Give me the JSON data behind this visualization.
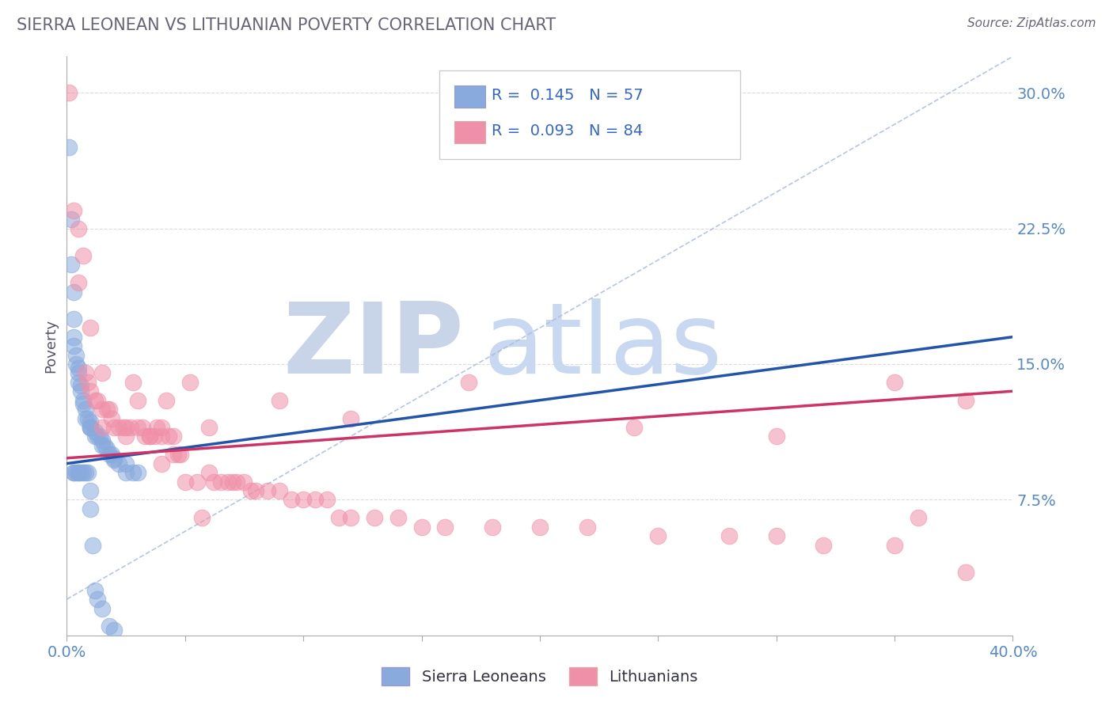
{
  "title": "SIERRA LEONEAN VS LITHUANIAN POVERTY CORRELATION CHART",
  "source_text": "Source: ZipAtlas.com",
  "ylabel": "Poverty",
  "xlim": [
    0.0,
    0.4
  ],
  "ylim": [
    0.0,
    0.32
  ],
  "yticks": [
    0.075,
    0.15,
    0.225,
    0.3
  ],
  "ytick_labels": [
    "7.5%",
    "15.0%",
    "22.5%",
    "30.0%"
  ],
  "background_color": "#ffffff",
  "grid_color": "#cccccc",
  "blue_color": "#88aadd",
  "pink_color": "#f090a8",
  "blue_line_color": "#2255aa",
  "pink_line_color": "#cc3366",
  "diag_line_color": "#aabbdd",
  "watermark_zip": "ZIP",
  "watermark_atlas": "atlas",
  "watermark_color_zip": "#c8d4e8",
  "watermark_color_atlas": "#c8d8f0",
  "legend_R1": "0.145",
  "legend_N1": "57",
  "legend_R2": "0.093",
  "legend_N2": "84",
  "legend_text_color": "#3366cc",
  "title_color": "#666677",
  "axis_tick_color": "#5588cc",
  "source_color": "#666677",
  "blue_line_start_y": 0.095,
  "blue_line_end_y": 0.165,
  "pink_line_start_y": 0.098,
  "pink_line_end_y": 0.135,
  "blue_scatter_x": [
    0.001,
    0.002,
    0.002,
    0.003,
    0.003,
    0.003,
    0.003,
    0.004,
    0.004,
    0.005,
    0.005,
    0.005,
    0.006,
    0.006,
    0.007,
    0.007,
    0.008,
    0.008,
    0.009,
    0.01,
    0.01,
    0.01,
    0.01,
    0.012,
    0.012,
    0.013,
    0.014,
    0.015,
    0.015,
    0.016,
    0.017,
    0.018,
    0.019,
    0.02,
    0.02,
    0.022,
    0.025,
    0.025,
    0.028,
    0.03,
    0.003,
    0.003,
    0.004,
    0.005,
    0.005,
    0.006,
    0.007,
    0.008,
    0.009,
    0.01,
    0.01,
    0.011,
    0.012,
    0.013,
    0.015,
    0.018,
    0.02
  ],
  "blue_scatter_y": [
    0.27,
    0.23,
    0.205,
    0.19,
    0.175,
    0.165,
    0.16,
    0.155,
    0.15,
    0.148,
    0.145,
    0.14,
    0.138,
    0.135,
    0.13,
    0.128,
    0.125,
    0.12,
    0.12,
    0.118,
    0.115,
    0.115,
    0.115,
    0.113,
    0.11,
    0.11,
    0.11,
    0.108,
    0.105,
    0.105,
    0.103,
    0.1,
    0.1,
    0.098,
    0.097,
    0.095,
    0.095,
    0.09,
    0.09,
    0.09,
    0.09,
    0.09,
    0.09,
    0.09,
    0.09,
    0.09,
    0.09,
    0.09,
    0.09,
    0.08,
    0.07,
    0.05,
    0.025,
    0.02,
    0.015,
    0.005,
    0.003
  ],
  "pink_scatter_x": [
    0.001,
    0.003,
    0.005,
    0.005,
    0.007,
    0.008,
    0.009,
    0.01,
    0.01,
    0.012,
    0.013,
    0.015,
    0.015,
    0.017,
    0.018,
    0.019,
    0.02,
    0.022,
    0.024,
    0.025,
    0.025,
    0.027,
    0.028,
    0.03,
    0.03,
    0.032,
    0.033,
    0.035,
    0.035,
    0.037,
    0.038,
    0.04,
    0.04,
    0.042,
    0.043,
    0.045,
    0.045,
    0.047,
    0.048,
    0.05,
    0.052,
    0.055,
    0.057,
    0.06,
    0.062,
    0.065,
    0.068,
    0.07,
    0.072,
    0.075,
    0.078,
    0.08,
    0.085,
    0.09,
    0.095,
    0.1,
    0.105,
    0.11,
    0.115,
    0.12,
    0.13,
    0.14,
    0.15,
    0.16,
    0.18,
    0.2,
    0.22,
    0.25,
    0.28,
    0.3,
    0.32,
    0.35,
    0.36,
    0.38,
    0.015,
    0.04,
    0.06,
    0.09,
    0.12,
    0.17,
    0.24,
    0.3,
    0.35,
    0.38
  ],
  "pink_scatter_y": [
    0.3,
    0.235,
    0.225,
    0.195,
    0.21,
    0.145,
    0.14,
    0.135,
    0.17,
    0.13,
    0.13,
    0.125,
    0.115,
    0.125,
    0.125,
    0.12,
    0.115,
    0.115,
    0.115,
    0.115,
    0.11,
    0.115,
    0.14,
    0.13,
    0.115,
    0.115,
    0.11,
    0.11,
    0.11,
    0.11,
    0.115,
    0.115,
    0.11,
    0.13,
    0.11,
    0.11,
    0.1,
    0.1,
    0.1,
    0.085,
    0.14,
    0.085,
    0.065,
    0.09,
    0.085,
    0.085,
    0.085,
    0.085,
    0.085,
    0.085,
    0.08,
    0.08,
    0.08,
    0.08,
    0.075,
    0.075,
    0.075,
    0.075,
    0.065,
    0.065,
    0.065,
    0.065,
    0.06,
    0.06,
    0.06,
    0.06,
    0.06,
    0.055,
    0.055,
    0.055,
    0.05,
    0.05,
    0.065,
    0.035,
    0.145,
    0.095,
    0.115,
    0.13,
    0.12,
    0.14,
    0.115,
    0.11,
    0.14,
    0.13
  ]
}
